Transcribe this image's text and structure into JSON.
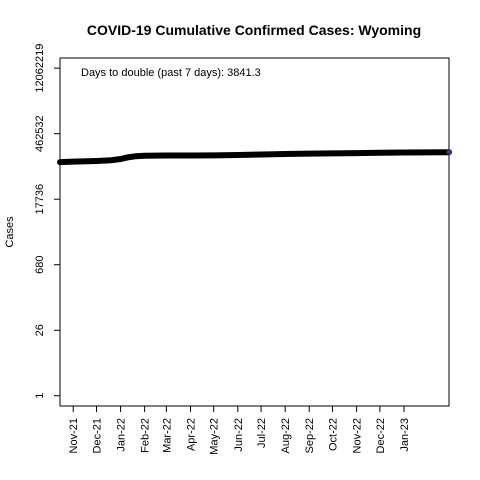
{
  "chart_data": {
    "type": "line",
    "title": "COVID-19 Cumulative Confirmed Cases: Wyoming",
    "xlabel": "",
    "ylabel": "Cases",
    "y_scale": "log",
    "y_ticks": [
      1,
      26,
      680,
      17736,
      462532,
      12062219
    ],
    "y_tick_labels": [
      "1",
      "26",
      "680",
      "17736",
      "462532",
      "12062219"
    ],
    "y_range": [
      0.6,
      20000000
    ],
    "x_range": [
      "2021-10-15",
      "2023-02-28"
    ],
    "x_ticks": [
      "2021-11-01",
      "2021-12-01",
      "2022-01-01",
      "2022-02-01",
      "2022-03-01",
      "2022-04-01",
      "2022-05-01",
      "2022-06-01",
      "2022-07-01",
      "2022-08-01",
      "2022-09-01",
      "2022-10-01",
      "2022-11-01",
      "2022-12-01",
      "2023-01-01"
    ],
    "x_tick_labels": [
      "Nov-21",
      "Dec-21",
      "Jan-22",
      "Feb-22",
      "Mar-22",
      "Apr-22",
      "May-22",
      "Jun-22",
      "Jul-22",
      "Aug-22",
      "Sep-22",
      "Oct-22",
      "Nov-22",
      "Dec-22",
      "Jan-23"
    ],
    "annotation": "Days to double (past 7 days): 3841.3",
    "grid": false,
    "series": [
      {
        "color": "#000000",
        "points": [
          [
            "2021-10-15",
            112000
          ],
          [
            "2021-11-01",
            115000
          ],
          [
            "2021-12-01",
            119000
          ],
          [
            "2021-12-20",
            123000
          ],
          [
            "2022-01-01",
            131000
          ],
          [
            "2022-01-10",
            142000
          ],
          [
            "2022-01-20",
            150000
          ],
          [
            "2022-02-01",
            154000
          ],
          [
            "2022-03-01",
            156000
          ],
          [
            "2022-04-01",
            156500
          ],
          [
            "2022-05-01",
            157000
          ],
          [
            "2022-06-01",
            160000
          ],
          [
            "2022-07-01",
            164000
          ],
          [
            "2022-08-01",
            168000
          ],
          [
            "2022-09-01",
            171000
          ],
          [
            "2022-10-01",
            173500
          ],
          [
            "2022-11-01",
            176000
          ],
          [
            "2022-12-01",
            178500
          ],
          [
            "2023-01-01",
            181000
          ],
          [
            "2023-02-28",
            184000
          ]
        ]
      }
    ]
  }
}
